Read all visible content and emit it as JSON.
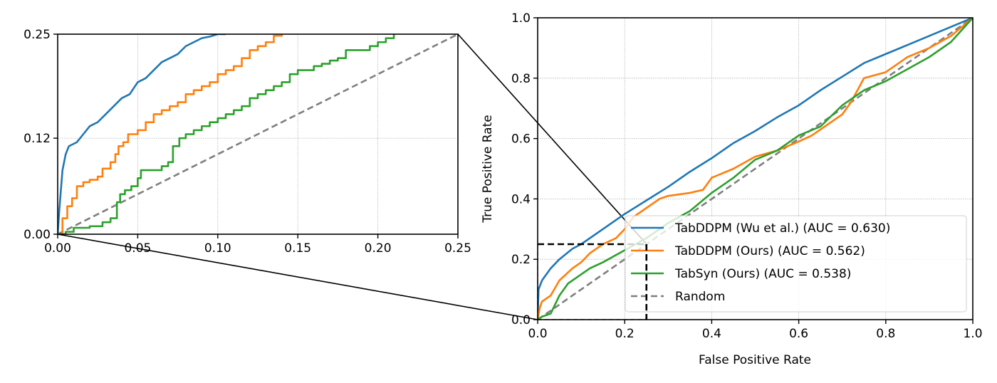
{
  "chart_data": [
    {
      "type": "line",
      "name": "inset-zoom",
      "title": "",
      "xlabel": "",
      "ylabel": "",
      "xlim": [
        0.0,
        0.25
      ],
      "ylim": [
        0.0,
        0.25
      ],
      "xticks": [
        "0.00",
        "0.05",
        "0.10",
        "0.15",
        "0.20",
        "0.25"
      ],
      "yticks": [
        "0.00",
        "0.12",
        "0.25"
      ],
      "grid": true,
      "series": [
        {
          "name": "TabDDPM (Wu et al.) (AUC = 0.630)",
          "color": "#1f77b4",
          "style": "solid",
          "x": [
            0,
            0.001,
            0.003,
            0.005,
            0.007,
            0.012,
            0.016,
            0.02,
            0.025,
            0.03,
            0.035,
            0.04,
            0.045,
            0.05,
            0.055,
            0.06,
            0.065,
            0.07,
            0.075,
            0.08,
            0.085,
            0.09,
            0.095,
            0.1,
            0.105
          ],
          "y": [
            0,
            0.03,
            0.08,
            0.1,
            0.11,
            0.115,
            0.125,
            0.135,
            0.14,
            0.15,
            0.16,
            0.17,
            0.175,
            0.19,
            0.195,
            0.205,
            0.215,
            0.22,
            0.225,
            0.235,
            0.24,
            0.245,
            0.247,
            0.25,
            0.25
          ]
        },
        {
          "name": "TabDDPM (Ours) (AUC = 0.562)",
          "color": "#ff7f0e",
          "style": "step",
          "x": [
            0,
            0.003,
            0.006,
            0.009,
            0.012,
            0.016,
            0.02,
            0.025,
            0.028,
            0.033,
            0.036,
            0.038,
            0.041,
            0.044,
            0.05,
            0.055,
            0.06,
            0.065,
            0.07,
            0.075,
            0.08,
            0.085,
            0.09,
            0.095,
            0.1,
            0.105,
            0.11,
            0.115,
            0.12,
            0.125,
            0.13,
            0.135,
            0.14
          ],
          "y": [
            0,
            0.02,
            0.035,
            0.045,
            0.06,
            0.065,
            0.068,
            0.072,
            0.082,
            0.09,
            0.1,
            0.11,
            0.115,
            0.125,
            0.13,
            0.14,
            0.15,
            0.155,
            0.16,
            0.165,
            0.175,
            0.18,
            0.185,
            0.19,
            0.2,
            0.205,
            0.21,
            0.22,
            0.23,
            0.235,
            0.24,
            0.248,
            0.25
          ]
        },
        {
          "name": "TabSyn (Ours) (AUC = 0.538)",
          "color": "#2ca02c",
          "style": "step",
          "x": [
            0,
            0.005,
            0.01,
            0.02,
            0.028,
            0.033,
            0.037,
            0.039,
            0.042,
            0.046,
            0.05,
            0.052,
            0.06,
            0.065,
            0.069,
            0.072,
            0.076,
            0.08,
            0.085,
            0.09,
            0.095,
            0.1,
            0.105,
            0.11,
            0.115,
            0.12,
            0.125,
            0.13,
            0.135,
            0.14,
            0.145,
            0.15,
            0.16,
            0.165,
            0.17,
            0.175,
            0.18,
            0.185,
            0.195,
            0.2,
            0.205,
            0.21
          ],
          "y": [
            0,
            0.003,
            0.008,
            0.01,
            0.015,
            0.02,
            0.04,
            0.05,
            0.055,
            0.06,
            0.07,
            0.08,
            0.08,
            0.085,
            0.09,
            0.11,
            0.12,
            0.125,
            0.13,
            0.135,
            0.14,
            0.145,
            0.15,
            0.155,
            0.16,
            0.17,
            0.175,
            0.18,
            0.185,
            0.19,
            0.2,
            0.205,
            0.21,
            0.213,
            0.217,
            0.22,
            0.23,
            0.23,
            0.235,
            0.24,
            0.245,
            0.25
          ]
        },
        {
          "name": "Random",
          "color": "#7f7f7f",
          "style": "dashed",
          "x": [
            0,
            0.25
          ],
          "y": [
            0,
            0.25
          ]
        }
      ]
    },
    {
      "type": "line",
      "name": "main-roc",
      "title": "",
      "xlabel": "False Positive Rate",
      "ylabel": "True Positive Rate",
      "xlim": [
        0.0,
        1.0
      ],
      "ylim": [
        0.0,
        1.0
      ],
      "xticks": [
        "0.0",
        "0.2",
        "0.4",
        "0.6",
        "0.8",
        "1.0"
      ],
      "yticks": [
        "0.0",
        "0.2",
        "0.4",
        "0.6",
        "0.8",
        "1.0"
      ],
      "grid": true,
      "legend_position": "lower right",
      "series": [
        {
          "name": "TabDDPM (Wu et al.) (AUC = 0.630)",
          "color": "#1f77b4",
          "style": "solid",
          "x": [
            0,
            0.002,
            0.01,
            0.03,
            0.05,
            0.08,
            0.1,
            0.15,
            0.2,
            0.25,
            0.3,
            0.35,
            0.4,
            0.45,
            0.5,
            0.55,
            0.6,
            0.65,
            0.7,
            0.75,
            0.8,
            0.85,
            0.9,
            0.95,
            1.0
          ],
          "y": [
            0,
            0.1,
            0.13,
            0.17,
            0.2,
            0.235,
            0.25,
            0.3,
            0.35,
            0.395,
            0.44,
            0.49,
            0.535,
            0.585,
            0.625,
            0.67,
            0.71,
            0.76,
            0.805,
            0.85,
            0.88,
            0.91,
            0.94,
            0.97,
            1.0
          ]
        },
        {
          "name": "TabDDPM (Ours) (AUC = 0.562)",
          "color": "#ff7f0e",
          "style": "solid",
          "x": [
            0,
            0.005,
            0.01,
            0.03,
            0.05,
            0.08,
            0.1,
            0.12,
            0.15,
            0.18,
            0.2,
            0.22,
            0.25,
            0.28,
            0.3,
            0.35,
            0.38,
            0.4,
            0.45,
            0.5,
            0.55,
            0.6,
            0.63,
            0.65,
            0.7,
            0.72,
            0.75,
            0.8,
            0.85,
            0.9,
            0.95,
            1.0
          ],
          "y": [
            0,
            0.04,
            0.06,
            0.08,
            0.13,
            0.17,
            0.19,
            0.22,
            0.25,
            0.27,
            0.3,
            0.34,
            0.37,
            0.4,
            0.41,
            0.42,
            0.43,
            0.47,
            0.5,
            0.54,
            0.56,
            0.59,
            0.61,
            0.63,
            0.68,
            0.72,
            0.8,
            0.82,
            0.87,
            0.9,
            0.94,
            1.0
          ]
        },
        {
          "name": "TabSyn (Ours) (AUC = 0.538)",
          "color": "#2ca02c",
          "style": "solid",
          "x": [
            0,
            0.01,
            0.03,
            0.04,
            0.05,
            0.07,
            0.1,
            0.12,
            0.15,
            0.2,
            0.25,
            0.3,
            0.35,
            0.4,
            0.45,
            0.5,
            0.55,
            0.6,
            0.65,
            0.7,
            0.75,
            0.8,
            0.85,
            0.9,
            0.95,
            1.0
          ],
          "y": [
            0,
            0.01,
            0.02,
            0.05,
            0.08,
            0.12,
            0.15,
            0.17,
            0.19,
            0.23,
            0.27,
            0.32,
            0.36,
            0.42,
            0.47,
            0.53,
            0.56,
            0.61,
            0.64,
            0.71,
            0.76,
            0.79,
            0.83,
            0.87,
            0.92,
            1.0
          ]
        },
        {
          "name": "Random",
          "color": "#7f7f7f",
          "style": "dashed",
          "x": [
            0,
            1.0
          ],
          "y": [
            0,
            1.0
          ]
        }
      ],
      "annotations": [
        {
          "type": "zoom-box",
          "x": [
            0,
            0.25
          ],
          "y": [
            0,
            0.25
          ],
          "style": "black dashed"
        }
      ]
    }
  ],
  "legend": {
    "items": [
      {
        "label": "TabDDPM (Wu et al.) (AUC = 0.630)",
        "color": "#1f77b4",
        "style": "solid"
      },
      {
        "label": "TabDDPM (Ours) (AUC = 0.562)",
        "color": "#ff7f0e",
        "style": "solid"
      },
      {
        "label": "TabSyn (Ours) (AUC = 0.538)",
        "color": "#2ca02c",
        "style": "solid"
      },
      {
        "label": "Random",
        "color": "#7f7f7f",
        "style": "dashed"
      }
    ]
  },
  "axes": {
    "main_xlabel": "False Positive Rate",
    "main_ylabel": "True Positive Rate"
  }
}
